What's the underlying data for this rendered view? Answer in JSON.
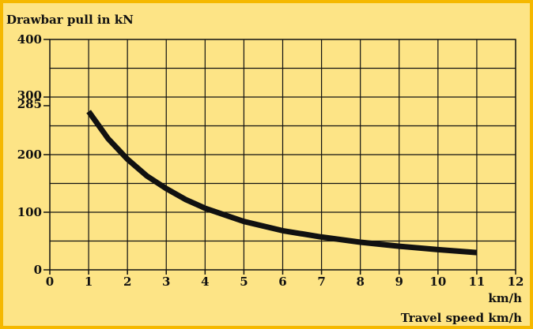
{
  "chart_data": {
    "type": "line",
    "title": "Drawbar pull in kN",
    "xlabel": "Travel speed km/h",
    "x_unit": "km/h",
    "xlim": [
      0,
      12
    ],
    "ylim": [
      0,
      400
    ],
    "x_ticks": [
      "0",
      "1",
      "2",
      "3",
      "4",
      "5",
      "6",
      "7",
      "8",
      "9",
      "10",
      "11",
      "12"
    ],
    "y_ticks": [
      {
        "label": "400",
        "value": 400
      },
      {
        "label": "300",
        "value": 300
      },
      {
        "label": "285",
        "value": 285
      },
      {
        "label": "200",
        "value": 200
      },
      {
        "label": "100",
        "value": 100
      },
      {
        "label": "0",
        "value": 0
      }
    ],
    "grid": true,
    "series": [
      {
        "color": "#111111",
        "x": [
          1,
          1.5,
          2,
          2.5,
          3,
          3.5,
          4,
          5,
          6,
          7,
          8,
          9,
          10,
          11
        ],
        "y": [
          275,
          228,
          192,
          163,
          141,
          122,
          107,
          84,
          68,
          57,
          48,
          41,
          35,
          30
        ]
      }
    ]
  }
}
